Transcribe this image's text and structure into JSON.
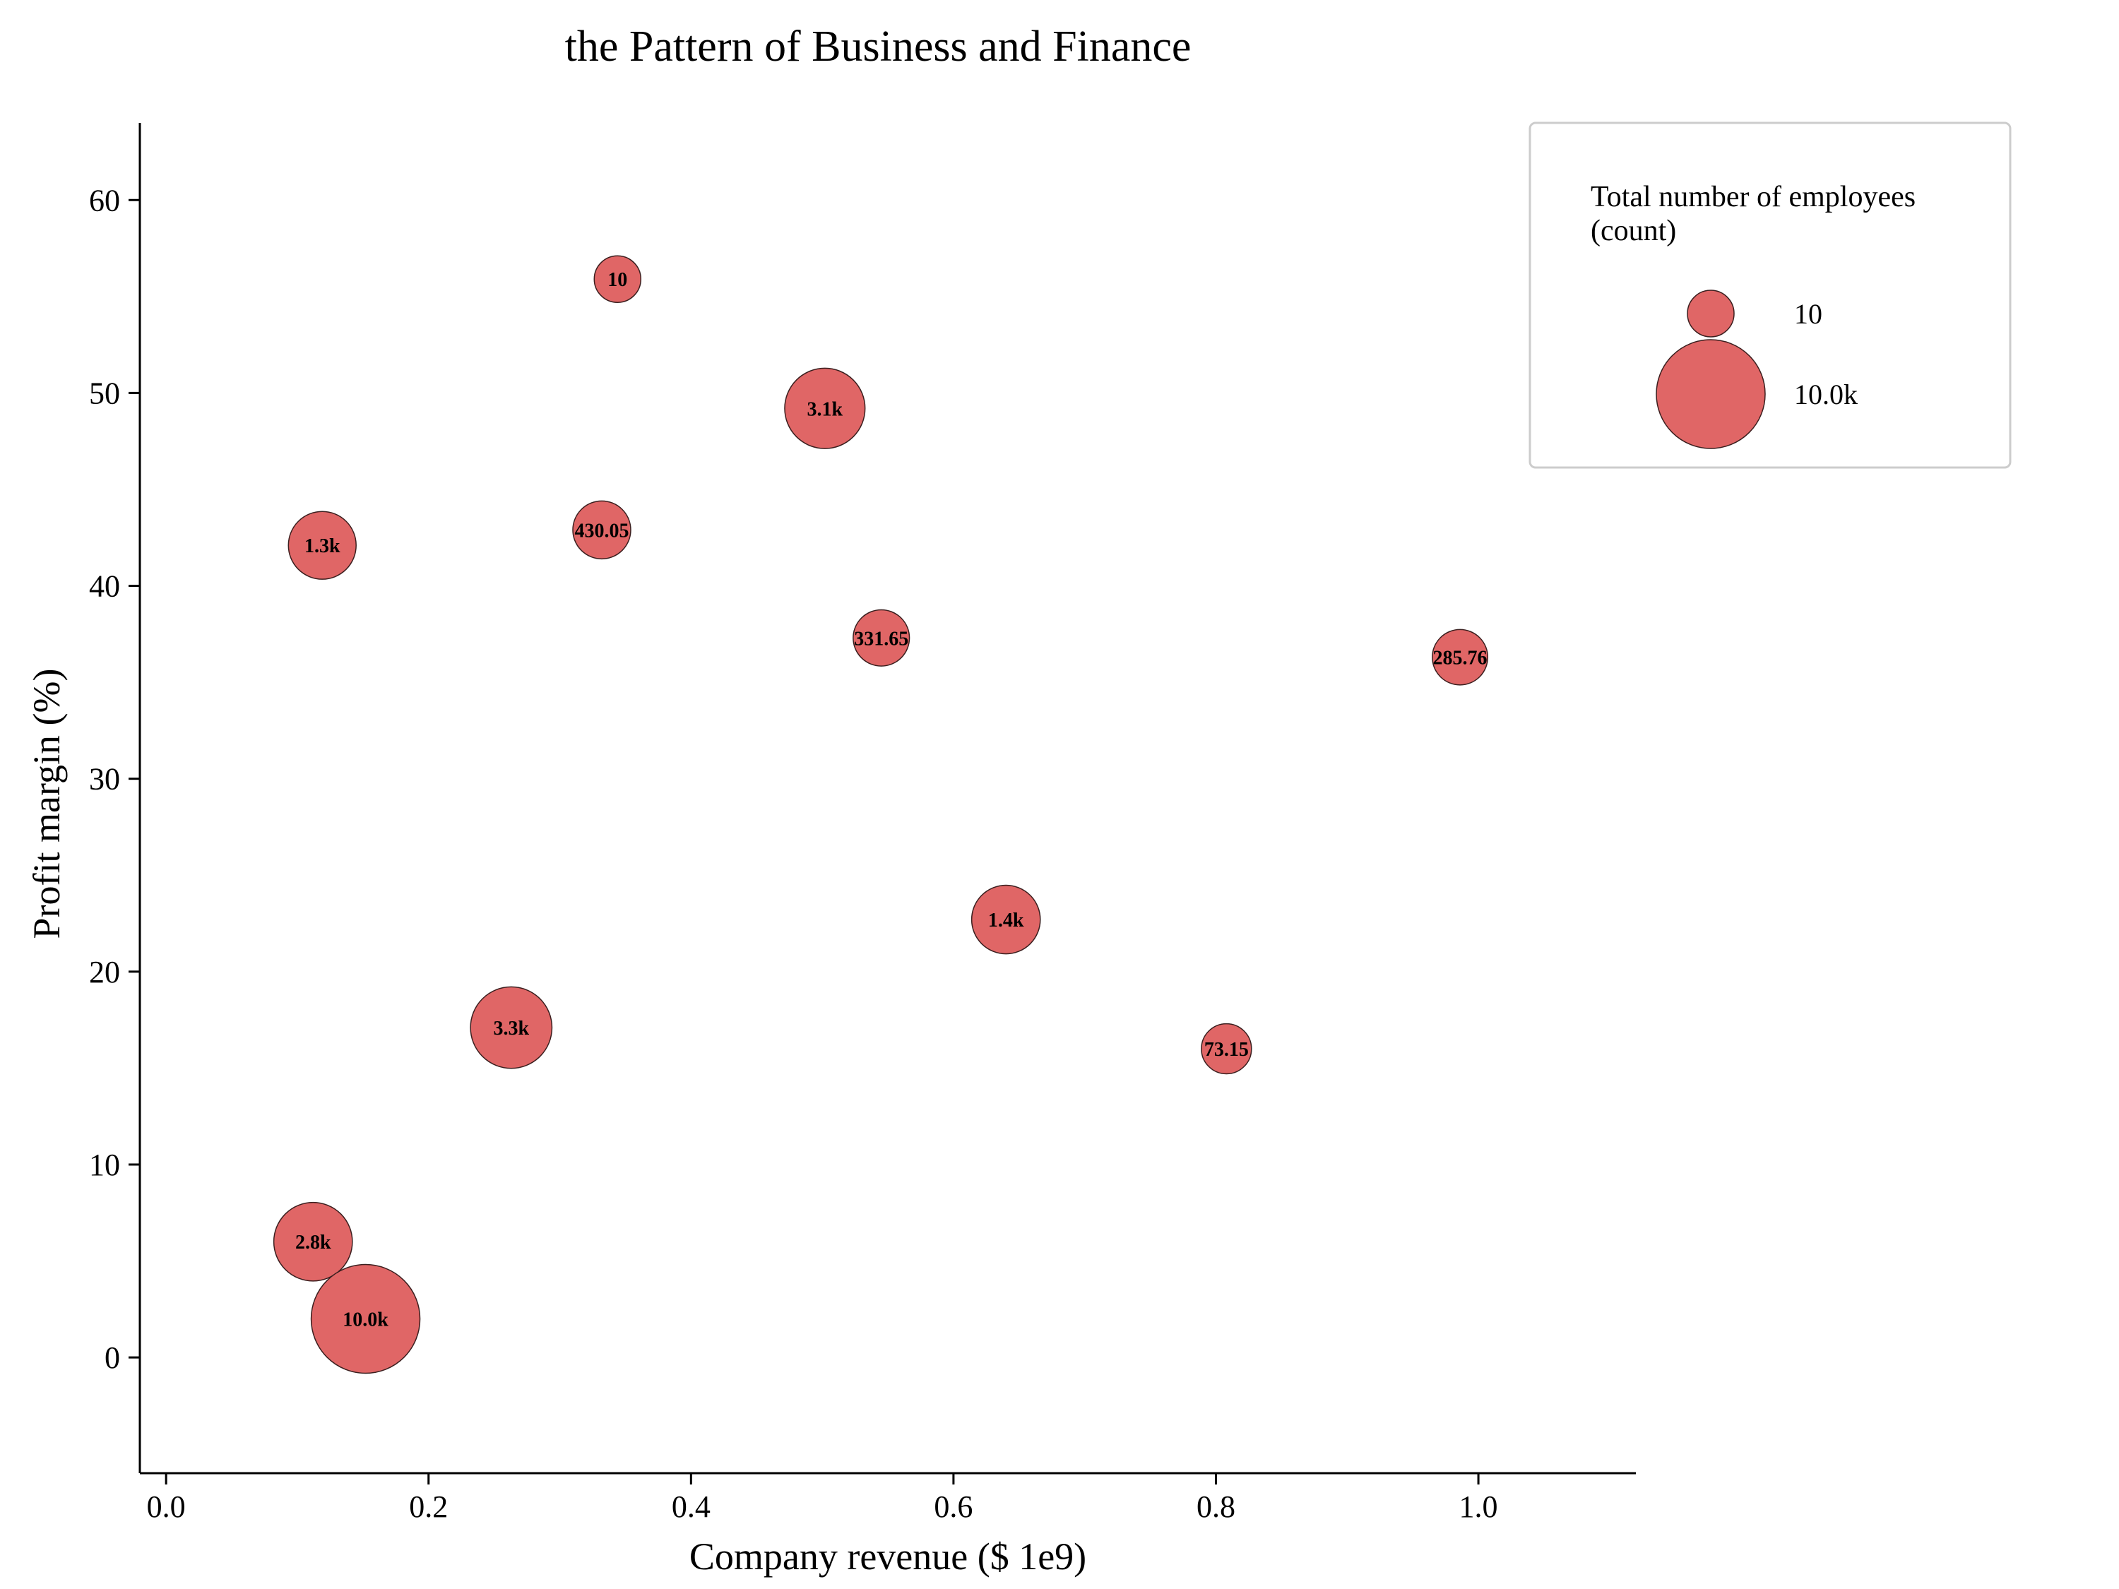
{
  "chart_data": {
    "type": "scatter",
    "title": "the Pattern of Business and Finance",
    "xlabel": "Company revenue ($ 1e9)",
    "ylabel": "Profit margin (%)",
    "xlim": [
      -0.02,
      1.12
    ],
    "ylim": [
      -6,
      64
    ],
    "xticks": [
      "0.0",
      "0.2",
      "0.4",
      "0.6",
      "0.8",
      "1.0"
    ],
    "yticks": [
      "0",
      "10",
      "20",
      "30",
      "40",
      "50",
      "60"
    ],
    "grid": false,
    "marker_color": "#e06666",
    "marker_edge_color": "#3b1f1f",
    "size_variable": "Total number of employees (count)",
    "points": [
      {
        "x": 0.344,
        "y": 55.9,
        "size": 10,
        "label": "10"
      },
      {
        "x": 0.502,
        "y": 49.2,
        "size": 3100,
        "label": "3.1k"
      },
      {
        "x": 0.119,
        "y": 42.1,
        "size": 1300,
        "label": "1.3k"
      },
      {
        "x": 0.332,
        "y": 42.9,
        "size": 430.05,
        "label": "430.05"
      },
      {
        "x": 0.545,
        "y": 37.3,
        "size": 331.65,
        "label": "331.65"
      },
      {
        "x": 0.986,
        "y": 36.3,
        "size": 285.76,
        "label": "285.76"
      },
      {
        "x": 0.64,
        "y": 22.7,
        "size": 1400,
        "label": "1.4k"
      },
      {
        "x": 0.263,
        "y": 17.1,
        "size": 3300,
        "label": "3.3k"
      },
      {
        "x": 0.808,
        "y": 16.0,
        "size": 73.15,
        "label": "73.15"
      },
      {
        "x": 0.112,
        "y": 6.0,
        "size": 2800,
        "label": "2.8k"
      },
      {
        "x": 0.152,
        "y": 2.0,
        "size": 10000,
        "label": "10.0k"
      }
    ],
    "legend": {
      "title": "Total number of employees\n(count)",
      "placement": "top-right",
      "entries": [
        {
          "size": 10,
          "label": "10"
        },
        {
          "size": 10000,
          "label": "10.0k"
        }
      ]
    }
  }
}
